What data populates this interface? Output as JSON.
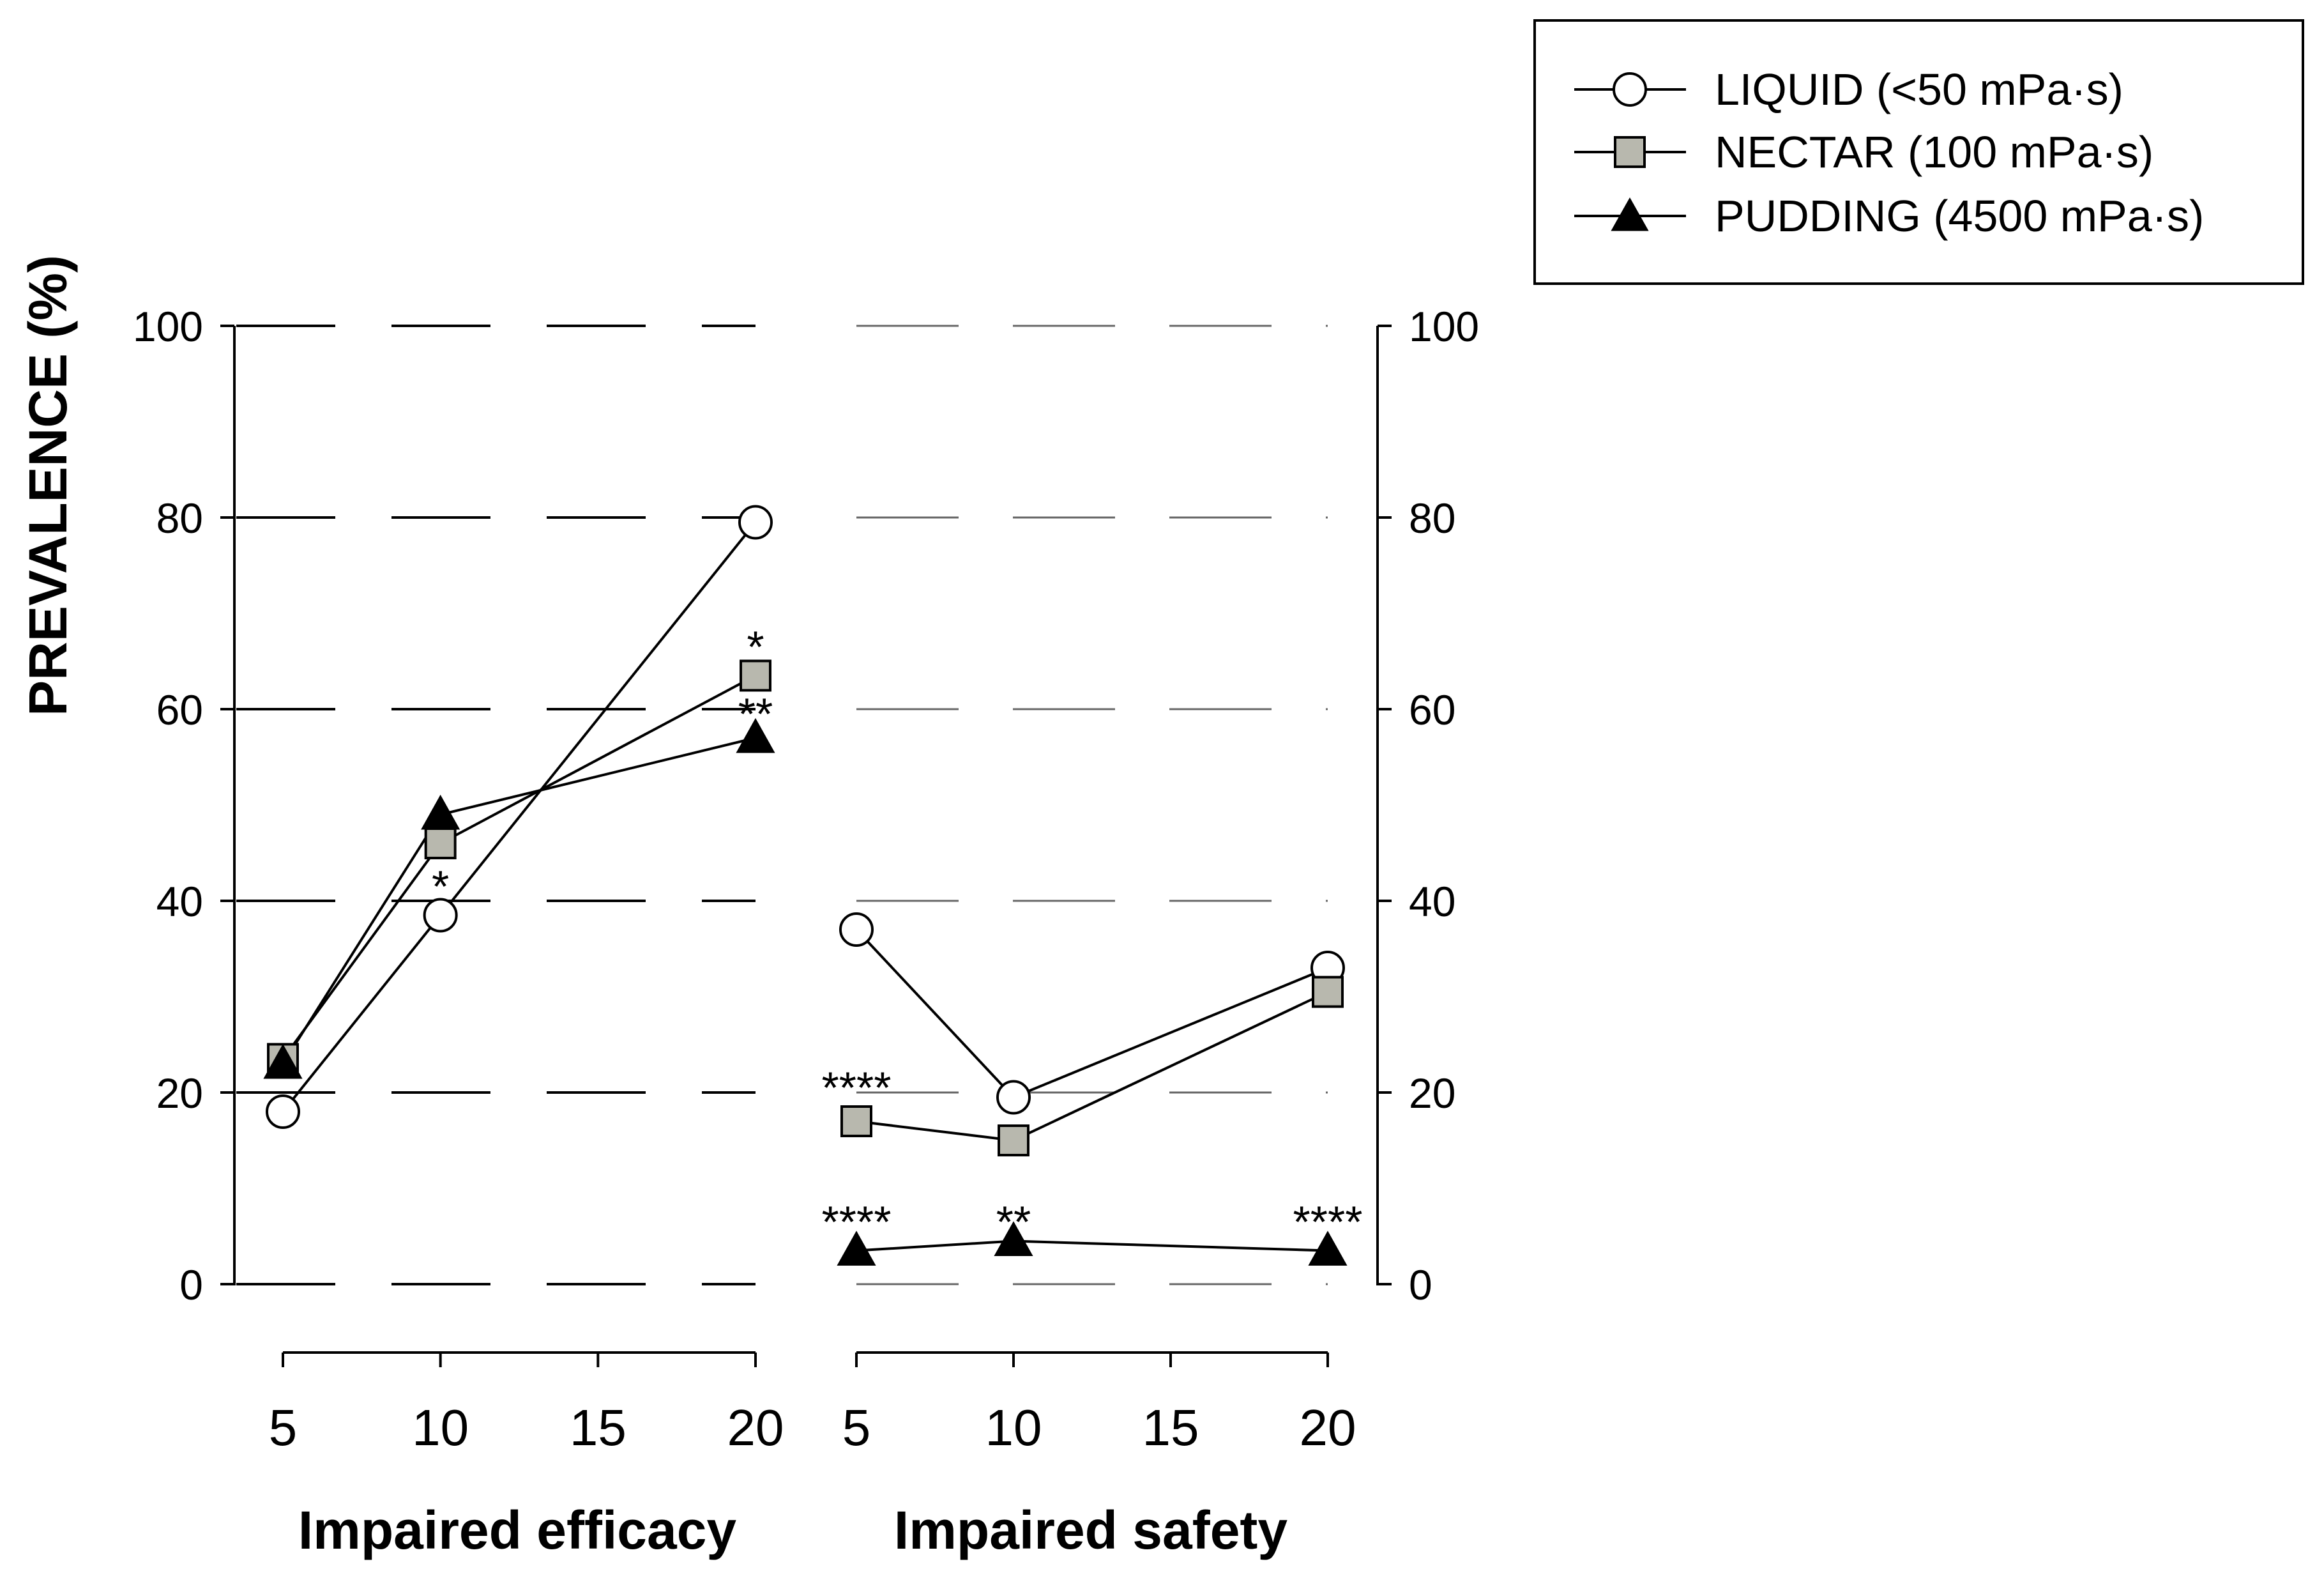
{
  "chart_data": {
    "type": "line",
    "ylabel": "PREVALENCE (%)",
    "ylim": [
      0,
      100
    ],
    "yticks": [
      0,
      20,
      40,
      60,
      80,
      100
    ],
    "xticks": [
      5,
      10,
      15,
      20
    ],
    "grid": "dashed horizontal",
    "legend_position": "top-right",
    "legend": [
      {
        "key": "liquid",
        "label": "LIQUID (<50 mPa·s)",
        "marker": "circle-open"
      },
      {
        "key": "nectar",
        "label": "NECTAR (100 mPa·s)",
        "marker": "square-gray"
      },
      {
        "key": "pudding",
        "label": "PUDDING (4500 mPa·s)",
        "marker": "triangle-black"
      }
    ],
    "colors": {
      "liquid": "#ffffff",
      "nectar": "#b8b8ae",
      "pudding": "#000000",
      "line": "#000000",
      "grid": "#000000"
    },
    "panels": [
      {
        "name": "efficacy",
        "xlabel": "Impaired efficacy",
        "x": [
          5,
          10,
          20
        ],
        "series": [
          {
            "key": "liquid",
            "name": "LIQUID (<50 mPa·s)",
            "values": [
              18,
              38.5,
              79.5
            ]
          },
          {
            "key": "nectar",
            "name": "NECTAR (100 mPa·s)",
            "values": [
              23.5,
              46,
              63.5
            ]
          },
          {
            "key": "pudding",
            "name": "PUDDING (4500 mPa·s)",
            "values": [
              23,
              49,
              57
            ]
          }
        ],
        "annotations": [
          {
            "text": "*",
            "x": 10,
            "y": 41.5
          },
          {
            "text": "*",
            "x": 20,
            "y": 66.5
          },
          {
            "text": "**",
            "x": 20,
            "y": 59.5
          }
        ]
      },
      {
        "name": "safety",
        "xlabel": "Impaired safety",
        "x": [
          5,
          10,
          20
        ],
        "series": [
          {
            "key": "liquid",
            "name": "LIQUID (<50 mPa·s)",
            "values": [
              37,
              19.5,
              33
            ]
          },
          {
            "key": "nectar",
            "name": "NECTAR (100 mPa·s)",
            "values": [
              17,
              15,
              30.5
            ]
          },
          {
            "key": "pudding",
            "name": "PUDDING (4500 mPa·s)",
            "values": [
              3.5,
              4.5,
              3.5
            ]
          }
        ],
        "annotations": [
          {
            "text": "****",
            "x": 5,
            "y": 20.5
          },
          {
            "text": "****",
            "x": 5,
            "y": 6.5
          },
          {
            "text": "**",
            "x": 10,
            "y": 6.5
          },
          {
            "text": "****",
            "x": 20,
            "y": 6.5
          }
        ]
      }
    ]
  }
}
